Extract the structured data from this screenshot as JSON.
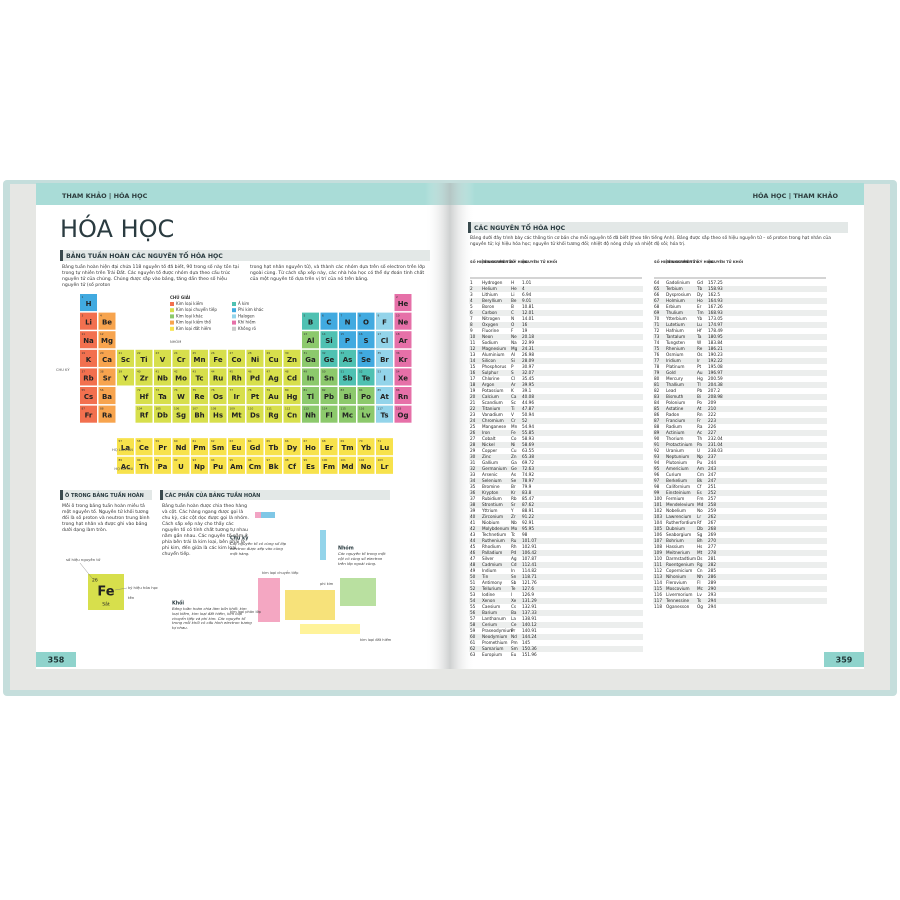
{
  "header_left": "THAM KHẢO | HÓA HỌC",
  "header_right": "HÓA HỌC | THAM KHẢO",
  "page_numbers": [
    358,
    359
  ],
  "title": "HÓA HỌC",
  "periodic_section": {
    "heading": "BẢNG TUẦN HOÀN CÁC NGUYÊN TỐ HÓA HỌC",
    "intro": "Bảng tuần hoàn hiện đại chứa 118 nguyên tố đã biết, 90 trong số này tồn tại trong tự nhiên trên Trái Đất. Các nguyên tố được nhóm dựa theo cấu trúc nguyên tử của chúng. Chúng được sắp vào bảng, tăng dần theo số hiệu nguyên tử (số proton",
    "intro2": "trong hạt nhân nguyên tử), và thành các nhóm dựa trên số electron trên lớp ngoài cùng. Từ cách sắp xếp này, các nhà hóa học có thể dự đoán tính chất của một nguyên tố dựa trên vị trí của nó trên bảng.",
    "legend_title": "CHÚ GIẢI",
    "legend": [
      {
        "label": "Kim loại kiềm",
        "color": "#f2704f"
      },
      {
        "label": "Kim loại chuyển tiếp",
        "color": "#d7df4c"
      },
      {
        "label": "Kim loại khác",
        "color": "#8cc96c"
      },
      {
        "label": "Kim loại kiềm thổ",
        "color": "#f7a44e"
      },
      {
        "label": "Kim loại đất hiếm",
        "color": "#f7e24c"
      },
      {
        "label": "Á kim",
        "color": "#4fc1b2"
      },
      {
        "label": "Phi kim khác",
        "color": "#41aae0"
      },
      {
        "label": "Halogen",
        "color": "#93d4ea"
      },
      {
        "label": "Khí hiếm",
        "color": "#e670a8"
      },
      {
        "label": "Không rõ",
        "color": "#c9c9c9"
      }
    ],
    "group_label": "NHÓM",
    "period_label": "CHU KỲ",
    "lanthanides": "HỌ LANTAN",
    "actinides": "HỌ ACTINI"
  },
  "cell_section": {
    "heading": "Ô TRONG BẢNG TUẦN HOÀN",
    "text": "Mỗi ô trong bảng tuần hoàn miêu tả một nguyên tố. Nguyên tử khối tương đối là số proton và neutron trung bình trong hạt nhân và được ghi vào bảng dưới dạng làm tròn.",
    "number_label": "số hiệu nguyên tử",
    "symbol_label": "ký hiệu hóa học",
    "name_label": "tên",
    "name": "Sắt"
  },
  "parts_section": {
    "heading": "CÁC PHẦN CỦA BẢNG TUẦN HOÀN",
    "text": "Bảng tuần hoàn được chia theo hàng và cột. Các hàng ngang được gọi là chu kỳ, các cột dọc được gọi là nhóm. Cách sắp xếp này cho thấy các nguyên tố có tính chất tương tự nhau nằm gần nhau. Các nguyên tố nằm ở phía bên trái là kim loại, bên phải là phi kim, đến giữa là các kim loại chuyển tiếp.",
    "period_title": "Chu kỳ",
    "period_text": "Các nguyên tố có cùng số lớp electron được xếp vào cùng một hàng.",
    "group_title": "Nhóm",
    "group_text": "Các nguyên tố trong một cột có cùng số electron trên lớp ngoài cùng.",
    "block_title": "Khối",
    "block_text": "Bảng tuần hoàn chia làm bốn khối: kim loại kiềm, kim loại đất hiếm, kim loại chuyển tiếp và phi kim. Các nguyên tố trong mỗi khối có cấu hình electron tương tự nhau.",
    "tag_transition": "kim loại chuyển tiếp",
    "tag_nonmetal": "phi kim",
    "tag_rare": "kim loại đất hiếm",
    "tag_alkali": "kim loại phân lớp"
  },
  "element_table": {
    "heading": "CÁC NGUYÊN TỐ HÓA HỌC",
    "intro": "Bảng dưới đây trình bày các thông tin cơ bản cho mỗi nguyên tố đã biết (theo tên tiếng Anh). Bảng được sắp theo số hiệu nguyên tử – số proton trong hạt nhân của nguyên tử; ký hiệu hóa học; nguyên tử khối tương đối; nhiệt độ nóng chảy và nhiệt độ sôi; hóa trị.",
    "columns": [
      "SỐ HIỆU NGUYÊN TỬ",
      "TÊN NGUYÊN TỐ",
      "KÝ HIỆU",
      "NGUYÊN TỬ KHỐI"
    ]
  },
  "elements": [
    [
      1,
      "H",
      "Hydrogen",
      1.01
    ],
    [
      2,
      "He",
      "Helium",
      4
    ],
    [
      3,
      "Li",
      "Lithium",
      6.94
    ],
    [
      4,
      "Be",
      "Beryllium",
      9.01
    ],
    [
      5,
      "B",
      "Boron",
      10.81
    ],
    [
      6,
      "C",
      "Carbon",
      12.01
    ],
    [
      7,
      "N",
      "Nitrogen",
      14.01
    ],
    [
      8,
      "O",
      "Oxygen",
      16
    ],
    [
      9,
      "F",
      "Fluorine",
      19
    ],
    [
      10,
      "Ne",
      "Neon",
      20.18
    ],
    [
      11,
      "Na",
      "Sodium",
      22.99
    ],
    [
      12,
      "Mg",
      "Magnesium",
      24.31
    ],
    [
      13,
      "Al",
      "Aluminium",
      26.98
    ],
    [
      14,
      "Si",
      "Silicon",
      28.09
    ],
    [
      15,
      "P",
      "Phosphorus",
      30.97
    ],
    [
      16,
      "S",
      "Sulphur",
      32.07
    ],
    [
      17,
      "Cl",
      "Chlorine",
      35.45
    ],
    [
      18,
      "Ar",
      "Argon",
      39.95
    ],
    [
      19,
      "K",
      "Potassium",
      39.1
    ],
    [
      20,
      "Ca",
      "Calcium",
      40.08
    ],
    [
      21,
      "Sc",
      "Scandium",
      44.96
    ],
    [
      22,
      "Ti",
      "Titanium",
      47.87
    ],
    [
      23,
      "V",
      "Vanadium",
      50.94
    ],
    [
      24,
      "Cr",
      "Chromium",
      52
    ],
    [
      25,
      "Mn",
      "Manganese",
      54.94
    ],
    [
      26,
      "Fe",
      "Iron",
      55.85
    ],
    [
      27,
      "Co",
      "Cobalt",
      58.93
    ],
    [
      28,
      "Ni",
      "Nickel",
      58.69
    ],
    [
      29,
      "Cu",
      "Copper",
      63.55
    ],
    [
      30,
      "Zn",
      "Zinc",
      65.38
    ],
    [
      31,
      "Ga",
      "Gallium",
      69.72
    ],
    [
      32,
      "Ge",
      "Germanium",
      72.63
    ],
    [
      33,
      "As",
      "Arsenic",
      74.92
    ],
    [
      34,
      "Se",
      "Selenium",
      78.97
    ],
    [
      35,
      "Br",
      "Bromine",
      79.9
    ],
    [
      36,
      "Kr",
      "Krypton",
      83.8
    ],
    [
      37,
      "Rb",
      "Rubidium",
      85.47
    ],
    [
      38,
      "Sr",
      "Strontium",
      87.62
    ],
    [
      39,
      "Y",
      "Yttrium",
      88.91
    ],
    [
      40,
      "Zr",
      "Zirconium",
      91.22
    ],
    [
      41,
      "Nb",
      "Niobium",
      92.91
    ],
    [
      42,
      "Mo",
      "Molybdenum",
      95.95
    ],
    [
      43,
      "Tc",
      "Technetium",
      98
    ],
    [
      44,
      "Ru",
      "Ruthenium",
      101.07
    ],
    [
      45,
      "Rh",
      "Rhodium",
      102.91
    ],
    [
      46,
      "Pd",
      "Palladium",
      106.42
    ],
    [
      47,
      "Ag",
      "Silver",
      107.87
    ],
    [
      48,
      "Cd",
      "Cadmium",
      112.41
    ],
    [
      49,
      "In",
      "Indium",
      114.82
    ],
    [
      50,
      "Sn",
      "Tin",
      118.71
    ],
    [
      51,
      "Sb",
      "Antimony",
      121.76
    ],
    [
      52,
      "Te",
      "Tellurium",
      127.6
    ],
    [
      53,
      "I",
      "Iodine",
      126.9
    ],
    [
      54,
      "Xe",
      "Xenon",
      131.29
    ],
    [
      55,
      "Cs",
      "Caesium",
      132.91
    ],
    [
      56,
      "Ba",
      "Barium",
      137.33
    ],
    [
      57,
      "La",
      "Lanthanum",
      138.91
    ],
    [
      58,
      "Ce",
      "Cerium",
      140.12
    ],
    [
      59,
      "Pr",
      "Praseodymium",
      140.91
    ],
    [
      60,
      "Nd",
      "Neodymium",
      144.24
    ],
    [
      61,
      "Pm",
      "Promethium",
      145
    ],
    [
      62,
      "Sm",
      "Samarium",
      150.36
    ],
    [
      63,
      "Eu",
      "Europium",
      151.96
    ],
    [
      64,
      "Gd",
      "Gadolinium",
      157.25
    ],
    [
      65,
      "Tb",
      "Terbium",
      158.93
    ],
    [
      66,
      "Dy",
      "Dysprosium",
      162.5
    ],
    [
      67,
      "Ho",
      "Holmium",
      164.93
    ],
    [
      68,
      "Er",
      "Erbium",
      167.26
    ],
    [
      69,
      "Tm",
      "Thulium",
      168.93
    ],
    [
      70,
      "Yb",
      "Ytterbium",
      173.05
    ],
    [
      71,
      "Lu",
      "Lutetium",
      174.97
    ],
    [
      72,
      "Hf",
      "Hafnium",
      178.49
    ],
    [
      73,
      "Ta",
      "Tantalum",
      180.95
    ],
    [
      74,
      "W",
      "Tungsten",
      183.84
    ],
    [
      75,
      "Re",
      "Rhenium",
      186.21
    ],
    [
      76,
      "Os",
      "Osmium",
      190.23
    ],
    [
      77,
      "Ir",
      "Iridium",
      192.22
    ],
    [
      78,
      "Pt",
      "Platinum",
      195.08
    ],
    [
      79,
      "Au",
      "Gold",
      196.97
    ],
    [
      80,
      "Hg",
      "Mercury",
      200.59
    ],
    [
      81,
      "Tl",
      "Thallium",
      204.38
    ],
    [
      82,
      "Pb",
      "Lead",
      207.2
    ],
    [
      83,
      "Bi",
      "Bismuth",
      208.98
    ],
    [
      84,
      "Po",
      "Polonium",
      209
    ],
    [
      85,
      "At",
      "Astatine",
      210
    ],
    [
      86,
      "Rn",
      "Radon",
      222
    ],
    [
      87,
      "Fr",
      "Francium",
      223
    ],
    [
      88,
      "Ra",
      "Radium",
      226
    ],
    [
      89,
      "Ac",
      "Actinium",
      227
    ],
    [
      90,
      "Th",
      "Thorium",
      232.04
    ],
    [
      91,
      "Pa",
      "Protactinium",
      231.04
    ],
    [
      92,
      "U",
      "Uranium",
      238.03
    ],
    [
      93,
      "Np",
      "Neptunium",
      237
    ],
    [
      94,
      "Pu",
      "Plutonium",
      244
    ],
    [
      95,
      "Am",
      "Americium",
      243
    ],
    [
      96,
      "Cm",
      "Curium",
      247
    ],
    [
      97,
      "Bk",
      "Berkelium",
      247
    ],
    [
      98,
      "Cf",
      "Californium",
      251
    ],
    [
      99,
      "Es",
      "Einsteinium",
      252
    ],
    [
      100,
      "Fm",
      "Fermium",
      257
    ],
    [
      101,
      "Md",
      "Mendelevium",
      258
    ],
    [
      102,
      "No",
      "Nobelium",
      259
    ],
    [
      103,
      "Lr",
      "Lawrencium",
      262
    ],
    [
      104,
      "Rf",
      "Rutherfordium",
      267
    ],
    [
      105,
      "Db",
      "Dubnium",
      268
    ],
    [
      106,
      "Sg",
      "Seaborgium",
      269
    ],
    [
      107,
      "Bh",
      "Bohrium",
      270
    ],
    [
      108,
      "Hs",
      "Hassium",
      277
    ],
    [
      109,
      "Mt",
      "Meitnerium",
      278
    ],
    [
      110,
      "Ds",
      "Darmstadtium",
      281
    ],
    [
      111,
      "Rg",
      "Roentgenium",
      282
    ],
    [
      112,
      "Cn",
      "Copernicium",
      285
    ],
    [
      113,
      "Nh",
      "Nihonium",
      286
    ],
    [
      114,
      "Fl",
      "Flerovium",
      289
    ],
    [
      115,
      "Mc",
      "Moscovium",
      290
    ],
    [
      116,
      "Lv",
      "Livermorium",
      293
    ],
    [
      117,
      "Ts",
      "Tennessine",
      294
    ],
    [
      118,
      "Og",
      "Oganesson",
      294
    ]
  ]
}
